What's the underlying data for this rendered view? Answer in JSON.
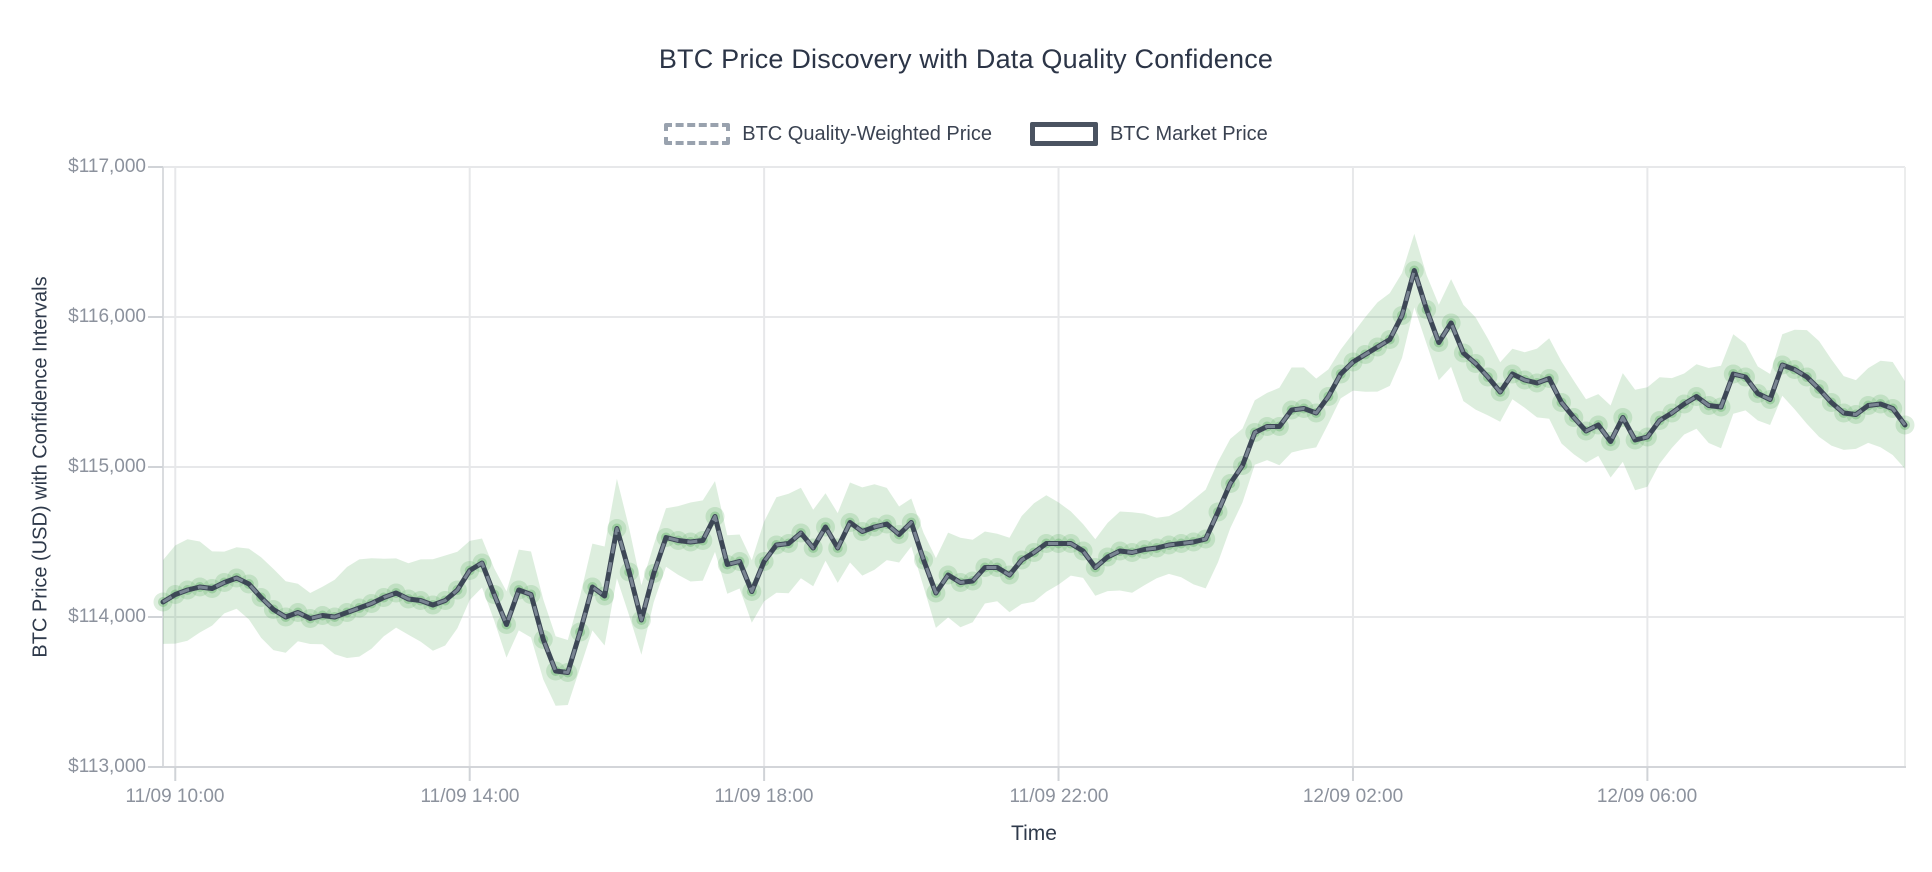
{
  "title": "BTC Price Discovery with Data Quality Confidence",
  "legend": {
    "items": [
      {
        "label": "BTC Quality-Weighted Price",
        "swatch_style": "dashed",
        "color": "#99a2ae"
      },
      {
        "label": "BTC Market Price",
        "swatch_style": "solid",
        "color": "#4a5361"
      }
    ]
  },
  "x_axis": {
    "title": "Time",
    "tick_labels": [
      "11/09 10:00",
      "11/09 14:00",
      "11/09 18:00",
      "11/09 22:00",
      "12/09 02:00",
      "12/09 06:00"
    ],
    "tick_point_indices": [
      1,
      25,
      49,
      73,
      97,
      121
    ]
  },
  "y_axis": {
    "title": "BTC Price (USD) with Confidence Intervals",
    "tick_labels": [
      "$117,000",
      "$116,000",
      "$115,000",
      "$114,000",
      "$113,000"
    ],
    "tick_values": [
      117000,
      116000,
      115000,
      114000,
      113000
    ]
  },
  "chart_data": {
    "type": "line",
    "x_start": "11/09 09:50",
    "x_step_minutes": 10,
    "ylim": [
      113000,
      117000
    ],
    "grid": true,
    "legend_position": "top-center",
    "series": [
      {
        "name": "BTC Market Price",
        "style": "solid",
        "color": "#3d4756",
        "values": [
          114100,
          114150,
          114180,
          114200,
          114190,
          114230,
          114260,
          114220,
          114130,
          114050,
          114000,
          114030,
          113990,
          114010,
          114000,
          114030,
          114060,
          114090,
          114130,
          114160,
          114120,
          114110,
          114080,
          114110,
          114180,
          114310,
          114360,
          114150,
          113950,
          114180,
          114150,
          113850,
          113640,
          113630,
          113900,
          114200,
          114140,
          114590,
          114300,
          113980,
          114290,
          114530,
          114510,
          114500,
          114510,
          114670,
          114350,
          114370,
          114170,
          114370,
          114480,
          114490,
          114560,
          114460,
          114600,
          114460,
          114630,
          114570,
          114600,
          114620,
          114550,
          114630,
          114380,
          114160,
          114280,
          114230,
          114240,
          114330,
          114330,
          114280,
          114380,
          114430,
          114490,
          114490,
          114490,
          114440,
          114330,
          114400,
          114440,
          114430,
          114450,
          114460,
          114480,
          114490,
          114500,
          114520,
          114700,
          114890,
          115010,
          115230,
          115270,
          115270,
          115380,
          115390,
          115360,
          115470,
          115620,
          115700,
          115750,
          115800,
          115850,
          116010,
          116310,
          116050,
          115830,
          115960,
          115760,
          115690,
          115600,
          115500,
          115620,
          115580,
          115560,
          115590,
          115430,
          115330,
          115240,
          115280,
          115170,
          115330,
          115180,
          115200,
          115310,
          115360,
          115420,
          115470,
          115410,
          115400,
          115620,
          115600,
          115490,
          115450,
          115680,
          115650,
          115600,
          115520,
          115430,
          115360,
          115350,
          115410,
          115420,
          115390,
          115280
        ]
      },
      {
        "name": "BTC Quality-Weighted Price",
        "style": "dashed",
        "color": "#9aa6b2",
        "values_equal_market": true
      }
    ],
    "confidence_band": {
      "half_width_usd": 250,
      "color": "#57a95c"
    },
    "markers": {
      "color": "#57a95c",
      "at_every_point": true
    }
  }
}
